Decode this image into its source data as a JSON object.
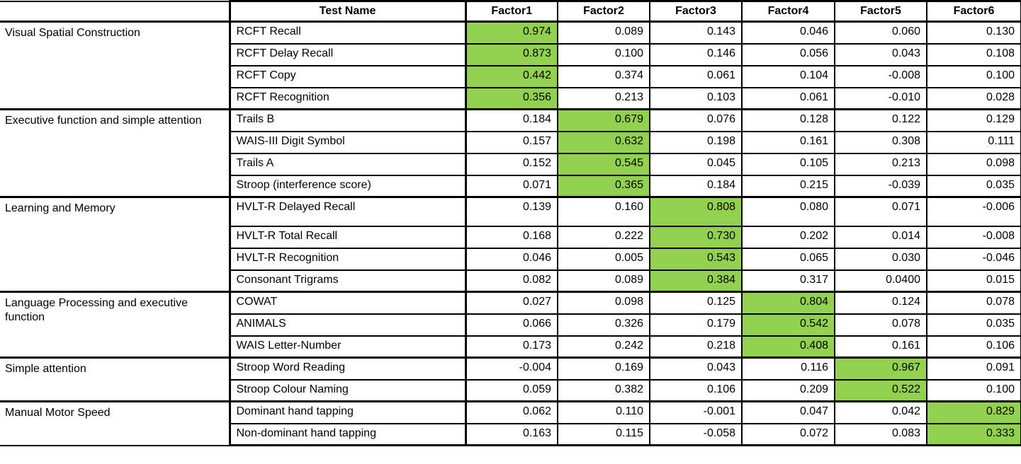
{
  "table": {
    "highlight_color": "#92d050",
    "border_color": "#000000",
    "header": {
      "category": "",
      "test_name": "Test Name",
      "factors": [
        "Factor1",
        "Factor2",
        "Factor3",
        "Factor4",
        "Factor5",
        "Factor6"
      ]
    },
    "groups": [
      {
        "category": "Visual Spatial Construction",
        "highlight_factor": 0,
        "rows": [
          {
            "test": "RCFT Recall",
            "values": [
              "0.974",
              "0.089",
              "0.143",
              "0.046",
              "0.060",
              "0.130"
            ]
          },
          {
            "test": "RCFT Delay Recall",
            "values": [
              "0.873",
              "0.100",
              "0.146",
              "0.056",
              "0.043",
              "0.108"
            ]
          },
          {
            "test": "RCFT Copy",
            "values": [
              "0.442",
              "0.374",
              "0.061",
              "0.104",
              "-0.008",
              "0.100"
            ]
          },
          {
            "test": "RCFT Recognition",
            "values": [
              "0.356",
              "0.213",
              "0.103",
              "0.061",
              "-0.010",
              "0.028"
            ]
          }
        ]
      },
      {
        "category": "Executive function and simple attention",
        "highlight_factor": 1,
        "rows": [
          {
            "test": "Trails B",
            "values": [
              "0.184",
              "0.679",
              "0.076",
              "0.128",
              "0.122",
              "0.129"
            ]
          },
          {
            "test": "WAIS-III Digit Symbol",
            "values": [
              "0.157",
              "0.632",
              "0.198",
              "0.161",
              "0.308",
              "0.111"
            ]
          },
          {
            "test": "Trails A",
            "values": [
              "0.152",
              "0.545",
              "0.045",
              "0.105",
              "0.213",
              "0.098"
            ]
          },
          {
            "test": "Stroop (interference score)",
            "values": [
              "0.071",
              "0.365",
              "0.184",
              "0.215",
              "-0.039",
              "0.035"
            ]
          }
        ]
      },
      {
        "category": "Learning and Memory",
        "highlight_factor": 2,
        "rows": [
          {
            "test": "HVLT-R Delayed Recall",
            "tall": true,
            "values": [
              "0.139",
              "0.160",
              "0.808",
              "0.080",
              "0.071",
              "-0.006"
            ]
          },
          {
            "test": "HVLT-R Total Recall",
            "values": [
              "0.168",
              "0.222",
              "0.730",
              "0.202",
              "0.014",
              "-0.008"
            ]
          },
          {
            "test": "HVLT-R Recognition",
            "values": [
              "0.046",
              "0.005",
              "0.543",
              "0.065",
              "0.030",
              "-0.046"
            ]
          },
          {
            "test": "Consonant Trigrams",
            "values": [
              "0.082",
              "0.089",
              "0.384",
              "0.317",
              "0.0400",
              "0.015"
            ]
          }
        ]
      },
      {
        "category": "Language Processing and executive function",
        "highlight_factor": 3,
        "rows": [
          {
            "test": "COWAT",
            "values": [
              "0.027",
              "0.098",
              "0.125",
              "0.804",
              "0.124",
              "0.078"
            ]
          },
          {
            "test": "ANIMALS",
            "values": [
              "0.066",
              "0.326",
              "0.179",
              "0.542",
              "0.078",
              "0.035"
            ]
          },
          {
            "test": "WAIS Letter-Number",
            "values": [
              "0.173",
              "0.242",
              "0.218",
              "0.408",
              "0.161",
              "0.106"
            ]
          }
        ]
      },
      {
        "category": "Simple attention",
        "highlight_factor": 4,
        "rows": [
          {
            "test": "Stroop Word Reading",
            "values": [
              "-0.004",
              "0.169",
              "0.043",
              "0.116",
              "0.967",
              "0.091"
            ]
          },
          {
            "test": "Stroop Colour Naming",
            "values": [
              "0.059",
              "0.382",
              "0.106",
              "0.209",
              "0.522",
              "0.100"
            ]
          }
        ]
      },
      {
        "category": "Manual Motor Speed",
        "highlight_factor": 5,
        "rows": [
          {
            "test": "Dominant hand tapping",
            "values": [
              "0.062",
              "0.110",
              "-0.001",
              "0.047",
              "0.042",
              "0.829"
            ]
          },
          {
            "test": "Non-dominant hand tapping",
            "values": [
              "0.163",
              "0.115",
              "-0.058",
              "0.072",
              "0.083",
              "0.333"
            ]
          }
        ]
      }
    ]
  }
}
